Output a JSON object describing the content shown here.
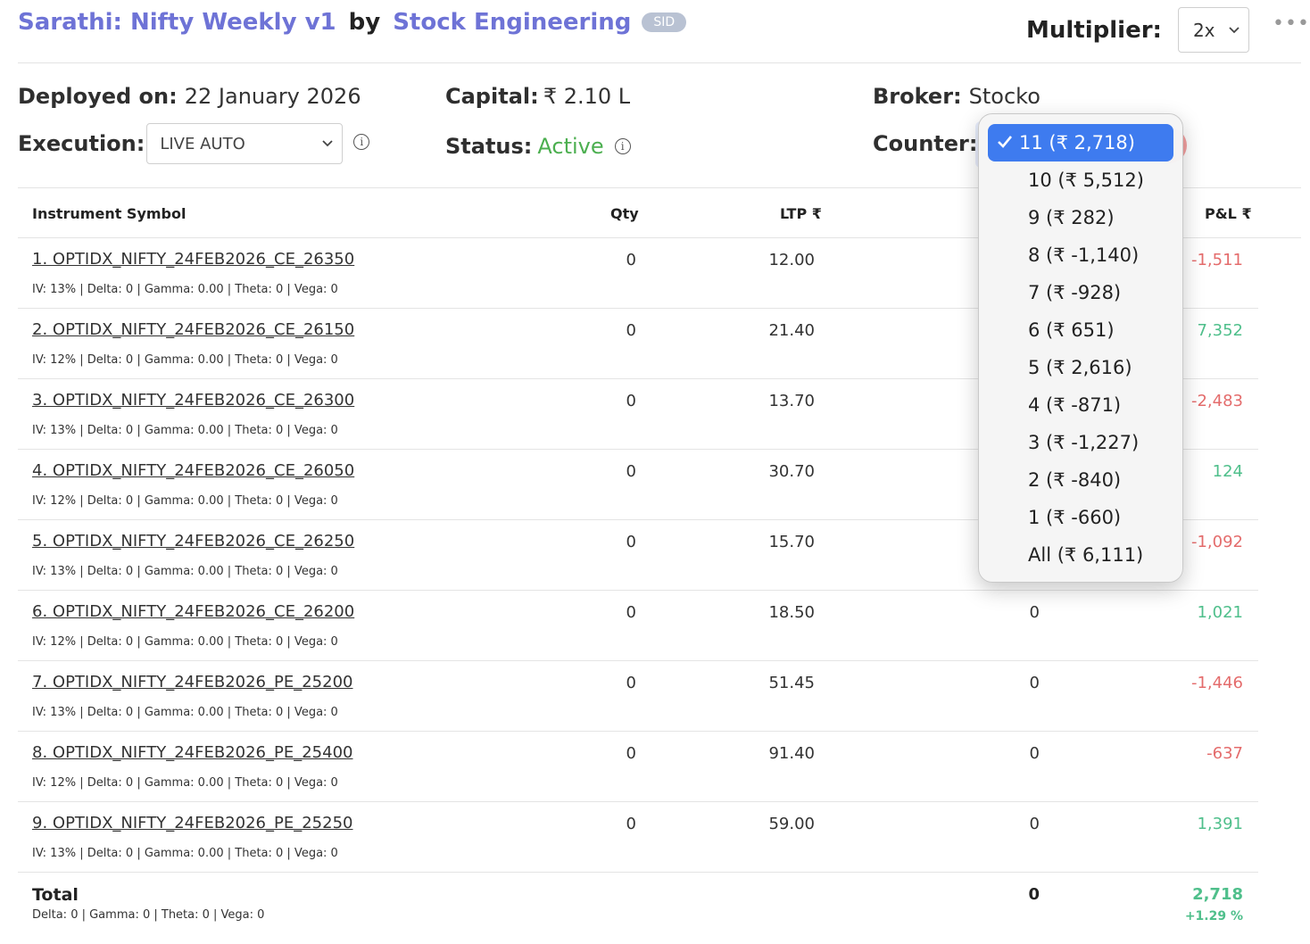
{
  "header": {
    "strategy_name": "Sarathi: Nifty Weekly v1",
    "by": "by",
    "author": "Stock Engineering",
    "badge": "SID",
    "multiplier_label": "Multiplier:",
    "multiplier_value": "2x",
    "more_icon": "more-horizontal-icon"
  },
  "info": {
    "deployed_label": "Deployed on:",
    "deployed_value": "22 January 2026",
    "capital_label": "Capital:",
    "capital_value": "₹ 2.10 L",
    "broker_label": "Broker:",
    "broker_value": "Stocko",
    "execution_label": "Execution:",
    "execution_value": "LIVE AUTO",
    "status_label": "Status:",
    "status_value": "Active",
    "counter_label": "Counter:"
  },
  "table": {
    "headers": {
      "symbol": "Instrument Symbol",
      "qty": "Qty",
      "ltp": "LTP ₹",
      "pnl": "P&L ₹"
    },
    "rows": [
      {
        "symbol": "1. OPTIDX_NIFTY_24FEB2026_CE_26350",
        "greeks": "IV: 13% | Delta: 0 | Gamma: 0.00 | Theta: 0 | Vega: 0",
        "qty": "0",
        "ltp": "12.00",
        "mid": "",
        "pnl": "-1,511",
        "sign": "neg"
      },
      {
        "symbol": "2. OPTIDX_NIFTY_24FEB2026_CE_26150",
        "greeks": "IV: 12% | Delta: 0 | Gamma: 0.00 | Theta: 0 | Vega: 0",
        "qty": "0",
        "ltp": "21.40",
        "mid": "",
        "pnl": "7,352",
        "sign": "pos"
      },
      {
        "symbol": "3. OPTIDX_NIFTY_24FEB2026_CE_26300",
        "greeks": "IV: 13% | Delta: 0 | Gamma: 0.00 | Theta: 0 | Vega: 0",
        "qty": "0",
        "ltp": "13.70",
        "mid": "",
        "pnl": "-2,483",
        "sign": "neg"
      },
      {
        "symbol": "4. OPTIDX_NIFTY_24FEB2026_CE_26050",
        "greeks": "IV: 12% | Delta: 0 | Gamma: 0.00 | Theta: 0 | Vega: 0",
        "qty": "0",
        "ltp": "30.70",
        "mid": "",
        "pnl": "124",
        "sign": "pos"
      },
      {
        "symbol": "5. OPTIDX_NIFTY_24FEB2026_CE_26250",
        "greeks": "IV: 13% | Delta: 0 | Gamma: 0.00 | Theta: 0 | Vega: 0",
        "qty": "0",
        "ltp": "15.70",
        "mid": "",
        "pnl": "-1,092",
        "sign": "neg"
      },
      {
        "symbol": "6. OPTIDX_NIFTY_24FEB2026_CE_26200",
        "greeks": "IV: 12% | Delta: 0 | Gamma: 0.00 | Theta: 0 | Vega: 0",
        "qty": "0",
        "ltp": "18.50",
        "mid": "0",
        "pnl": "1,021",
        "sign": "pos"
      },
      {
        "symbol": "7. OPTIDX_NIFTY_24FEB2026_PE_25200",
        "greeks": "IV: 13% | Delta: 0 | Gamma: 0.00 | Theta: 0 | Vega: 0",
        "qty": "0",
        "ltp": "51.45",
        "mid": "0",
        "pnl": "-1,446",
        "sign": "neg"
      },
      {
        "symbol": "8. OPTIDX_NIFTY_24FEB2026_PE_25400",
        "greeks": "IV: 12% | Delta: 0 | Gamma: 0.00 | Theta: 0 | Vega: 0",
        "qty": "0",
        "ltp": "91.40",
        "mid": "0",
        "pnl": "-637",
        "sign": "neg"
      },
      {
        "symbol": "9. OPTIDX_NIFTY_24FEB2026_PE_25250",
        "greeks": "IV: 13% | Delta: 0 | Gamma: 0.00 | Theta: 0 | Vega: 0",
        "qty": "0",
        "ltp": "59.00",
        "mid": "0",
        "pnl": "1,391",
        "sign": "pos"
      }
    ],
    "total": {
      "label": "Total",
      "greeks": "Delta: 0 | Gamma: 0  | Theta: 0 | Vega: 0",
      "mid": "0",
      "pnl": "2,718",
      "pct": "+1.29 %"
    }
  },
  "counter_dropdown": {
    "selected_index": 0,
    "options": [
      "11 (₹ 2,718)",
      "10 (₹ 5,512)",
      "9 (₹ 282)",
      "8 (₹ -1,140)",
      "7 (₹ -928)",
      "6 (₹ 651)",
      "5 (₹ 2,616)",
      "4 (₹ -871)",
      "3 (₹ -1,227)",
      "2 (₹ -840)",
      "1 (₹ -660)",
      "All (₹ 6,111)"
    ]
  },
  "colors": {
    "accent": "#6e73d6",
    "positive": "#4fbf8b",
    "negative": "#e46c6c",
    "active": "#4caf50",
    "selected_option": "#3e7bef"
  }
}
